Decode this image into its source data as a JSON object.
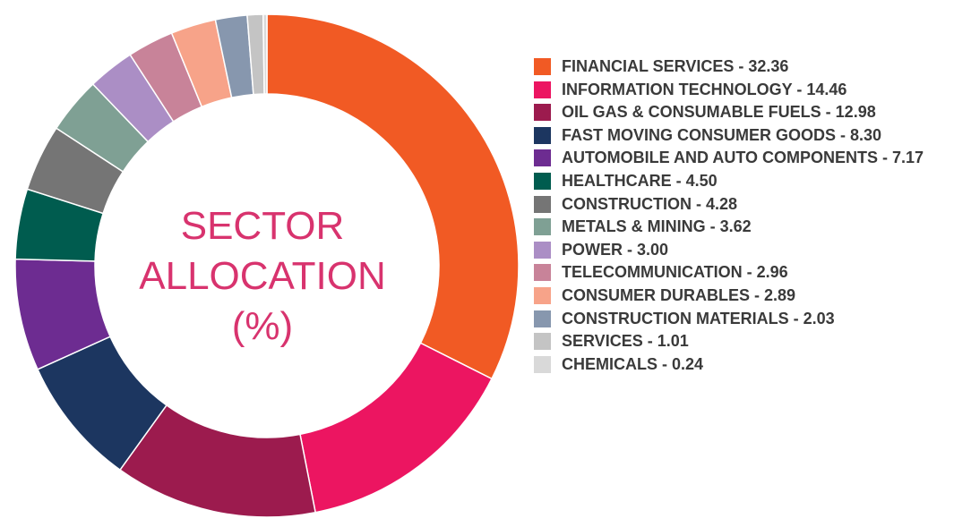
{
  "center_title": {
    "line1": "SECTOR",
    "line2": "ALLOCATION",
    "line3": "(%)"
  },
  "chart_data": {
    "type": "pie",
    "title": "SECTOR ALLOCATION (%)",
    "categories": [
      "FINANCIAL SERVICES",
      "INFORMATION TECHNOLOGY",
      "OIL GAS & CONSUMABLE FUELS",
      "FAST MOVING CONSUMER GOODS",
      "AUTOMOBILE AND AUTO COMPONENTS",
      "HEALTHCARE",
      "CONSTRUCTION",
      "METALS & MINING",
      "POWER",
      "TELECOMMUNICATION",
      "CONSUMER DURABLES",
      "CONSTRUCTION MATERIALS",
      "SERVICES",
      "CHEMICALS"
    ],
    "values": [
      32.36,
      14.46,
      12.98,
      8.3,
      7.17,
      4.5,
      4.28,
      3.62,
      3.0,
      2.96,
      2.89,
      2.03,
      1.01,
      0.24
    ],
    "colors": [
      "#f15a24",
      "#ec1561",
      "#9c1b4e",
      "#1c3660",
      "#6d2c91",
      "#005c4f",
      "#757575",
      "#7fa094",
      "#ab8ec5",
      "#c88399",
      "#f7a389",
      "#8797ae",
      "#c4c4c4",
      "#d9d9d9"
    ],
    "legend_position": "right",
    "donut": true,
    "legend_labels": [
      "FINANCIAL SERVICES - 32.36",
      "INFORMATION TECHNOLOGY - 14.46",
      "OIL GAS & CONSUMABLE FUELS - 12.98",
      "FAST MOVING CONSUMER GOODS - 8.30",
      "AUTOMOBILE AND AUTO COMPONENTS - 7.17",
      "HEALTHCARE - 4.50",
      "CONSTRUCTION - 4.28",
      "METALS & MINING - 3.62",
      "POWER - 3.00",
      "TELECOMMUNICATION - 2.96",
      "CONSUMER DURABLES - 2.89",
      "CONSTRUCTION MATERIALS - 2.03",
      "SERVICES - 1.01",
      "CHEMICALS - 0.24"
    ]
  }
}
